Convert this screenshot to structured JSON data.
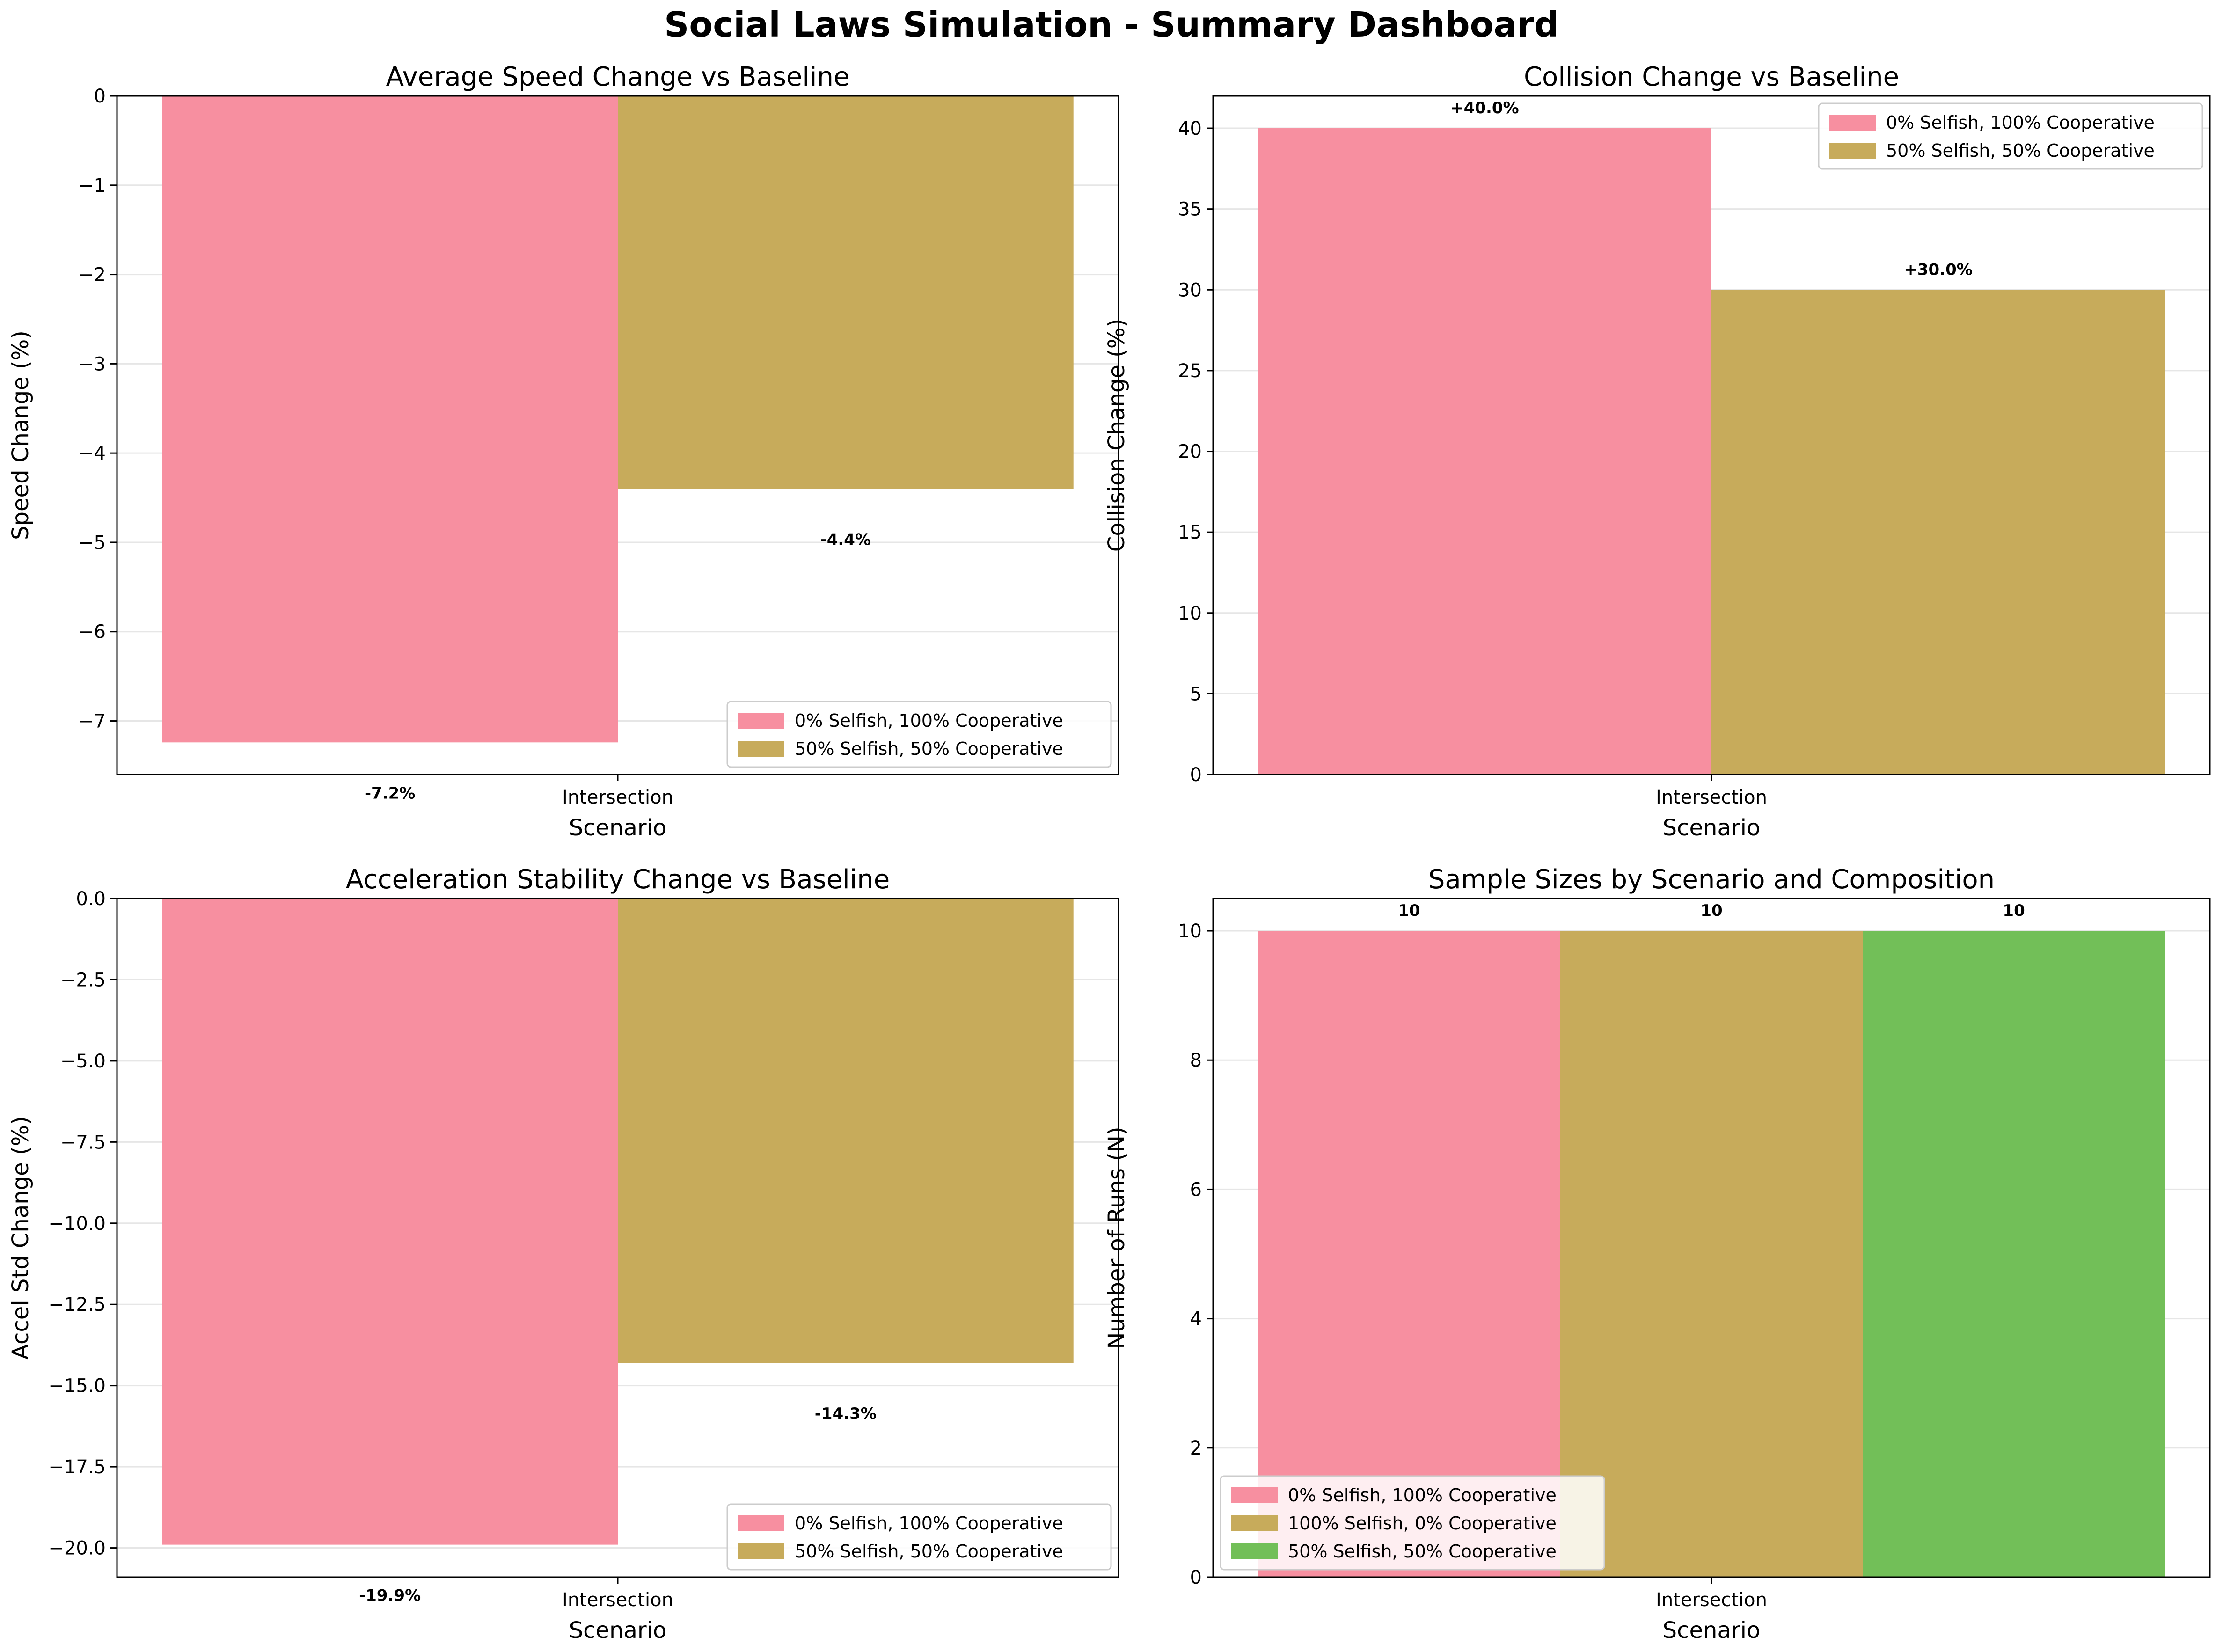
{
  "dashboard": {
    "title": "Social Laws Simulation - Summary Dashboard"
  },
  "colors": {
    "pink": "#f78fa0",
    "olive": "#c7ab5b",
    "green": "#72bf58",
    "grid": "#e6e6e6"
  },
  "chart_data": [
    {
      "id": "speed",
      "type": "bar",
      "title": "Average Speed Change vs Baseline",
      "xlabel": "Scenario",
      "ylabel": "Speed Change (%)",
      "categories": [
        "Intersection"
      ],
      "series": [
        {
          "name": "0% Selfish, 100% Cooperative",
          "values": [
            -7.24
          ],
          "label": "-7.2%",
          "color": "pink"
        },
        {
          "name": "50% Selfish, 50% Cooperative",
          "values": [
            -4.4
          ],
          "label": "-4.4%",
          "color": "olive"
        }
      ],
      "ylim": [
        -7.6,
        0
      ],
      "yticks": [
        0,
        -1,
        -2,
        -3,
        -4,
        -5,
        -6,
        -7
      ],
      "ytick_labels": [
        "0",
        "−1",
        "−2",
        "−3",
        "−4",
        "−5",
        "−6",
        "−7"
      ],
      "grid": true,
      "legend": "lower right"
    },
    {
      "id": "collision",
      "type": "bar",
      "title": "Collision Change vs Baseline",
      "xlabel": "Scenario",
      "ylabel": "Collision Change (%)",
      "categories": [
        "Intersection"
      ],
      "series": [
        {
          "name": "0% Selfish, 100% Cooperative",
          "values": [
            40.0
          ],
          "label": "+40.0%",
          "color": "pink"
        },
        {
          "name": "50% Selfish, 50% Cooperative",
          "values": [
            30.0
          ],
          "label": "+30.0%",
          "color": "olive"
        }
      ],
      "ylim": [
        0,
        42
      ],
      "yticks": [
        0,
        5,
        10,
        15,
        20,
        25,
        30,
        35,
        40
      ],
      "ytick_labels": [
        "0",
        "5",
        "10",
        "15",
        "20",
        "25",
        "30",
        "35",
        "40"
      ],
      "grid": true,
      "legend": "upper right"
    },
    {
      "id": "accel",
      "type": "bar",
      "title": "Acceleration Stability Change vs Baseline",
      "xlabel": "Scenario",
      "ylabel": "Accel Std Change (%)",
      "categories": [
        "Intersection"
      ],
      "series": [
        {
          "name": "0% Selfish, 100% Cooperative",
          "values": [
            -19.9
          ],
          "label": "-19.9%",
          "color": "pink"
        },
        {
          "name": "50% Selfish, 50% Cooperative",
          "values": [
            -14.3
          ],
          "label": "-14.3%",
          "color": "olive"
        }
      ],
      "ylim": [
        -20.9,
        0
      ],
      "yticks": [
        0,
        -2.5,
        -5,
        -7.5,
        -10,
        -12.5,
        -15,
        -17.5,
        -20
      ],
      "ytick_labels": [
        "0.0",
        "−2.5",
        "−5.0",
        "−7.5",
        "−10.0",
        "−12.5",
        "−15.0",
        "−17.5",
        "−20.0"
      ],
      "grid": true,
      "legend": "lower right"
    },
    {
      "id": "samples",
      "type": "bar",
      "title": "Sample Sizes by Scenario and Composition",
      "xlabel": "Scenario",
      "ylabel": "Number of Runs (N)",
      "categories": [
        "Intersection"
      ],
      "series": [
        {
          "name": "0% Selfish, 100% Cooperative",
          "values": [
            10
          ],
          "label": "10",
          "color": "pink"
        },
        {
          "name": "100% Selfish, 0% Cooperative",
          "values": [
            10
          ],
          "label": "10",
          "color": "olive"
        },
        {
          "name": "50% Selfish, 50% Cooperative",
          "values": [
            10
          ],
          "label": "10",
          "color": "green"
        }
      ],
      "ylim": [
        0,
        10.5
      ],
      "yticks": [
        0,
        2,
        4,
        6,
        8,
        10
      ],
      "ytick_labels": [
        "0",
        "2",
        "4",
        "6",
        "8",
        "10"
      ],
      "grid": true,
      "legend": "lower left"
    }
  ]
}
